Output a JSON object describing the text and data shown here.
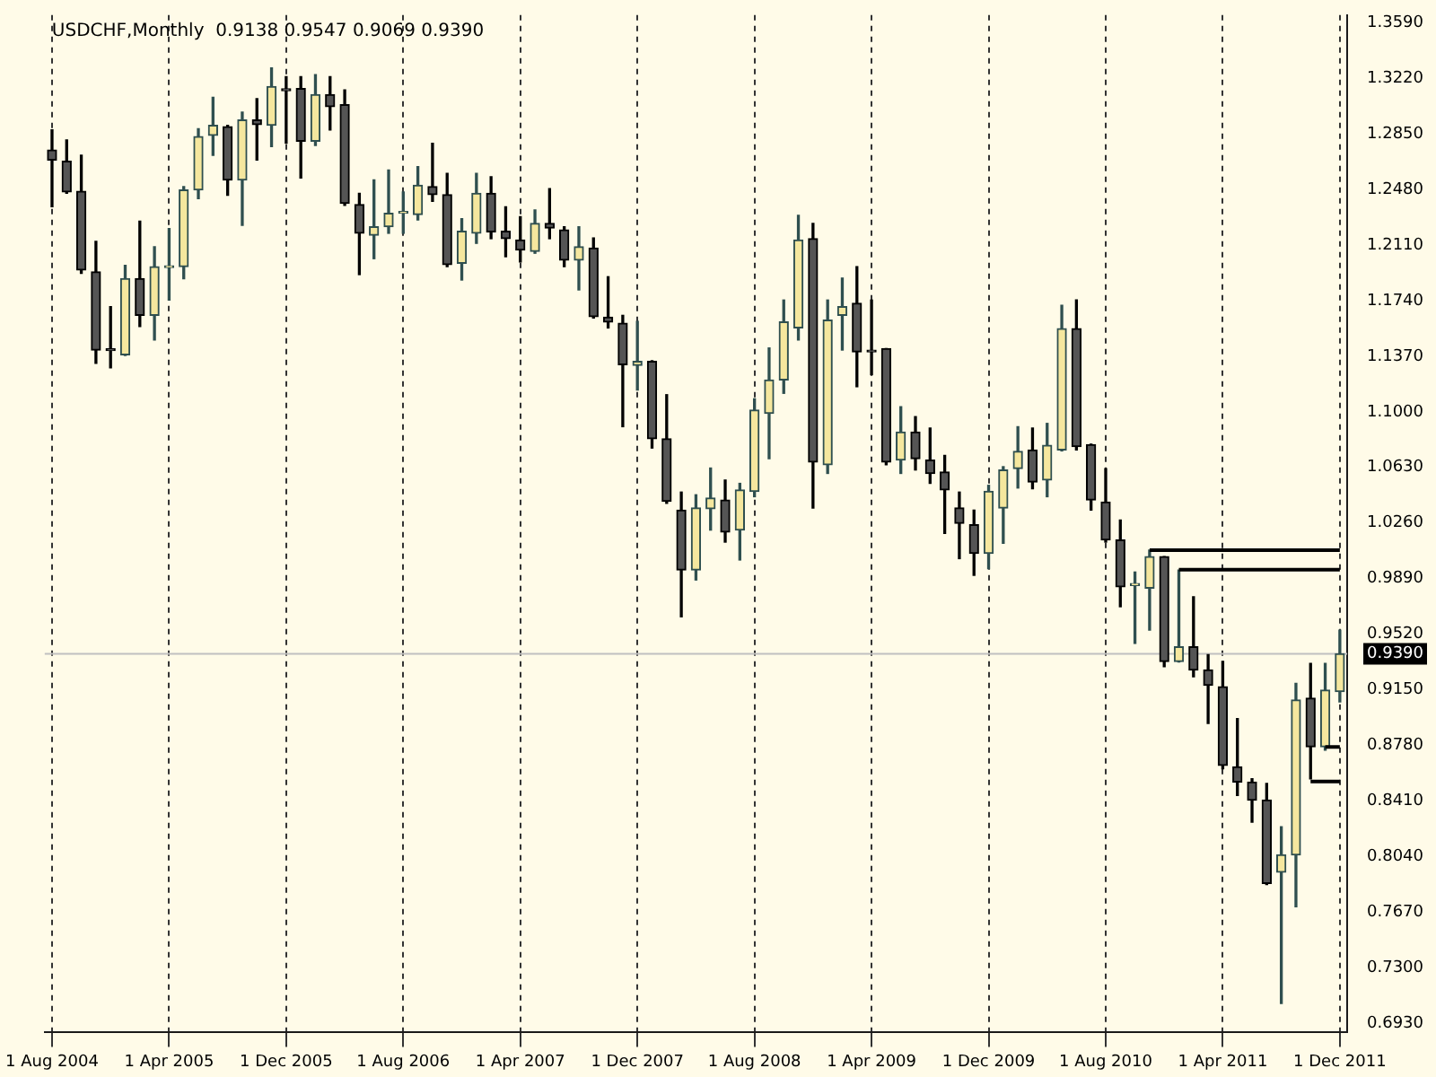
{
  "chart_data": {
    "type": "candlestick",
    "title": "USDCHF,Monthly  0.9138 0.9547 0.9069 0.9390",
    "categories": [
      "1 Aug 2004",
      null,
      null,
      null,
      null,
      null,
      null,
      null,
      "1 Apr 2005",
      null,
      null,
      null,
      null,
      null,
      null,
      null,
      "1 Dec 2005",
      null,
      null,
      null,
      null,
      null,
      null,
      null,
      "1 Aug 2006",
      null,
      null,
      null,
      null,
      null,
      null,
      null,
      "1 Apr 2007",
      null,
      null,
      null,
      null,
      null,
      null,
      null,
      "1 Dec 2007",
      null,
      null,
      null,
      null,
      null,
      null,
      null,
      "1 Aug 2008",
      null,
      null,
      null,
      null,
      null,
      null,
      null,
      "1 Apr 2009",
      null,
      null,
      null,
      null,
      null,
      null,
      null,
      "1 Dec 2009",
      null,
      null,
      null,
      null,
      null,
      null,
      null,
      "1 Aug 2010",
      null,
      null,
      null,
      null,
      null,
      null,
      null,
      "1 Apr 2011",
      null,
      null,
      null,
      null,
      null,
      null,
      null,
      "1 Dec 2011"
    ],
    "ohlc": [
      [
        1.2742,
        1.2876,
        1.2365,
        1.2676
      ],
      [
        1.2667,
        1.2809,
        1.2454,
        1.2463
      ],
      [
        1.2467,
        1.2707,
        1.1922,
        1.1944
      ],
      [
        1.1931,
        1.2135,
        1.1323,
        1.1411
      ],
      [
        1.1411,
        1.17,
        1.1292,
        1.1407
      ],
      [
        1.138,
        1.1975,
        1.1375,
        1.1886
      ],
      [
        1.1886,
        1.2268,
        1.1567,
        1.1642
      ],
      [
        1.1642,
        1.2099,
        1.1478,
        1.1966
      ],
      [
        1.196,
        1.2219,
        1.1744,
        1.1966
      ],
      [
        1.1966,
        1.2498,
        1.1886,
        1.2476
      ],
      [
        1.2476,
        1.2884,
        1.2419,
        1.2831
      ],
      [
        1.284,
        1.3093,
        1.2707,
        1.2907
      ],
      [
        1.2898,
        1.2907,
        1.2441,
        1.2543
      ],
      [
        1.2543,
        1.2995,
        1.2241,
        1.2942
      ],
      [
        1.2942,
        1.3084,
        1.2676,
        1.2911
      ],
      [
        1.2907,
        1.3288,
        1.2765,
        1.3164
      ],
      [
        1.3146,
        1.323,
        1.2787,
        1.3137
      ],
      [
        1.3151,
        1.323,
        1.2556,
        1.28
      ],
      [
        1.28,
        1.3244,
        1.2773,
        1.3111
      ],
      [
        1.3111,
        1.323,
        1.2876,
        1.3031
      ],
      [
        1.3044,
        1.3142,
        1.2374,
        1.2387
      ],
      [
        1.2379,
        1.2454,
        1.1913,
        1.2188
      ],
      [
        1.2175,
        1.2543,
        1.2019,
        1.2232
      ],
      [
        1.2232,
        1.2609,
        1.2188,
        1.2321
      ],
      [
        1.2321,
        1.2463,
        1.2188,
        1.2325
      ],
      [
        1.2312,
        1.2632,
        1.2277,
        1.2507
      ],
      [
        1.2498,
        1.2787,
        1.2401,
        1.2445
      ],
      [
        1.2445,
        1.2587,
        1.1966,
        1.1979
      ],
      [
        1.1988,
        1.2285,
        1.1877,
        1.2201
      ],
      [
        1.2188,
        1.2587,
        1.2121,
        1.2454
      ],
      [
        1.2454,
        1.2565,
        1.2152,
        1.2197
      ],
      [
        1.2201,
        1.2365,
        1.2032,
        1.2152
      ],
      [
        1.2143,
        1.2299,
        1.1997,
        1.2077
      ],
      [
        1.2068,
        1.2343,
        1.2055,
        1.2254
      ],
      [
        1.2254,
        1.2485,
        1.2152,
        1.2223
      ],
      [
        1.221,
        1.2232,
        1.1966,
        1.201
      ],
      [
        1.201,
        1.2232,
        1.1811,
        1.2099
      ],
      [
        1.209,
        1.2157,
        1.1624,
        1.1633
      ],
      [
        1.1629,
        1.1899,
        1.1558,
        1.1598
      ],
      [
        1.1589,
        1.1642,
        1.0901,
        1.1314
      ],
      [
        1.1309,
        1.1602,
        1.1145,
        1.1336
      ],
      [
        1.1336,
        1.134,
        1.0759,
        1.0821
      ],
      [
        1.0821,
        1.1114,
        1.0391,
        1.0404
      ],
      [
        1.0346,
        1.0466,
        0.9636,
        0.9947
      ],
      [
        0.9947,
        1.0448,
        0.9881,
        1.036
      ],
      [
        1.0355,
        1.0626,
        1.0213,
        1.0426
      ],
      [
        1.0413,
        1.0546,
        1.0133,
        1.02
      ],
      [
        1.0213,
        1.0524,
        1.0014,
        1.048
      ],
      [
        1.047,
        1.1087,
        1.0435,
        1.1012
      ],
      [
        1.099,
        1.1425,
        1.0688,
        1.1212
      ],
      [
        1.1212,
        1.1744,
        1.1123,
        1.1598
      ],
      [
        1.1558,
        1.2308,
        1.1478,
        1.2143
      ],
      [
        1.2152,
        1.2254,
        1.036,
        1.0666
      ],
      [
        1.0648,
        1.1744,
        1.059,
        1.1611
      ],
      [
        1.1642,
        1.189,
        1.1411,
        1.17
      ],
      [
        1.1722,
        1.1966,
        1.1167,
        1.1398
      ],
      [
        1.1402,
        1.1744,
        1.1247,
        1.1398
      ],
      [
        1.142,
        1.142,
        1.0648,
        1.0666
      ],
      [
        1.0679,
        1.1034,
        1.059,
        1.0866
      ],
      [
        1.0866,
        1.0968,
        1.0613,
        1.0688
      ],
      [
        1.0679,
        1.0892,
        1.0524,
        1.059
      ],
      [
        1.0599,
        1.071,
        1.0191,
        1.048
      ],
      [
        1.036,
        1.0466,
        1.0023,
        1.0258
      ],
      [
        1.0249,
        1.0346,
        0.9912,
        1.0058
      ],
      [
        1.0058,
        1.0511,
        0.9956,
        1.0471
      ],
      [
        1.036,
        1.0635,
        1.0125,
        1.0613
      ],
      [
        1.0622,
        1.0901,
        1.0493,
        1.0737
      ],
      [
        1.0746,
        1.0892,
        1.0488,
        1.0533
      ],
      [
        1.0546,
        1.0923,
        1.0435,
        1.0777
      ],
      [
        1.0746,
        1.1709,
        1.074,
        1.1553
      ],
      [
        1.1553,
        1.1744,
        1.0746,
        1.0768
      ],
      [
        1.0781,
        1.0785,
        1.0346,
        1.0413
      ],
      [
        1.04,
        1.0622,
        1.0133,
        1.0147
      ],
      [
        1.0147,
        1.028,
        0.9703,
        0.9836
      ],
      [
        0.9845,
        0.9934,
        0.9459,
        0.9854
      ],
      [
        0.9827,
        1.008,
        0.9548,
        1.0036
      ],
      [
        1.0036,
        1.0036,
        0.9304,
        0.9339
      ],
      [
        0.9339,
        0.9947,
        0.9335,
        0.9437
      ],
      [
        0.9437,
        0.977,
        0.9237,
        0.9282
      ],
      [
        0.9282,
        0.9384,
        0.8927,
        0.918
      ],
      [
        0.9171,
        0.9339,
        0.8625,
        0.8647
      ],
      [
        0.8638,
        0.8958,
        0.8447,
        0.8536
      ],
      [
        0.8536,
        0.8558,
        0.827,
        0.8416
      ],
      [
        0.8416,
        0.8527,
        0.7855,
        0.7862
      ],
      [
        0.7937,
        0.8239,
        0.7063,
        0.8052
      ],
      [
        0.8052,
        0.9193,
        0.7706,
        0.9082
      ],
      [
        0.9095,
        0.9326,
        0.8558,
        0.8771
      ],
      [
        0.8771,
        0.9326,
        0.8749,
        0.9148
      ],
      [
        0.9138,
        0.9547,
        0.9069,
        0.939
      ]
    ],
    "series": [
      {
        "type": "line",
        "color": "#000000",
        "values": [
          null,
          null,
          null,
          null,
          null,
          null,
          null,
          null,
          null,
          null,
          null,
          null,
          null,
          null,
          null,
          null,
          null,
          null,
          null,
          null,
          null,
          null,
          null,
          null,
          null,
          null,
          null,
          null,
          null,
          null,
          null,
          null,
          null,
          null,
          null,
          null,
          null,
          null,
          null,
          null,
          null,
          null,
          null,
          null,
          null,
          null,
          null,
          null,
          null,
          null,
          null,
          null,
          null,
          null,
          null,
          null,
          null,
          null,
          null,
          null,
          null,
          null,
          null,
          null,
          null,
          null,
          null,
          null,
          null,
          null,
          null,
          null,
          null,
          null,
          null,
          1.008,
          1.008,
          1.008,
          1.008,
          1.008,
          1.008,
          1.008,
          1.008,
          1.008,
          1.008,
          1.008,
          1.008,
          1.008,
          1.008
        ]
      },
      {
        "type": "line",
        "color": "#000000",
        "values": [
          null,
          null,
          null,
          null,
          null,
          null,
          null,
          null,
          null,
          null,
          null,
          null,
          null,
          null,
          null,
          null,
          null,
          null,
          null,
          null,
          null,
          null,
          null,
          null,
          null,
          null,
          null,
          null,
          null,
          null,
          null,
          null,
          null,
          null,
          null,
          null,
          null,
          null,
          null,
          null,
          null,
          null,
          null,
          null,
          null,
          null,
          null,
          null,
          null,
          null,
          null,
          null,
          null,
          null,
          null,
          null,
          null,
          null,
          null,
          null,
          null,
          null,
          null,
          null,
          null,
          null,
          null,
          null,
          null,
          null,
          null,
          null,
          null,
          null,
          null,
          null,
          null,
          0.995,
          0.995,
          0.995,
          0.995,
          0.995,
          0.995,
          0.995,
          0.995,
          0.995,
          0.995,
          0.995,
          0.995
        ]
      },
      {
        "type": "line",
        "color": "#000000",
        "values": [
          null,
          null,
          null,
          null,
          null,
          null,
          null,
          null,
          null,
          null,
          null,
          null,
          null,
          null,
          null,
          null,
          null,
          null,
          null,
          null,
          null,
          null,
          null,
          null,
          null,
          null,
          null,
          null,
          null,
          null,
          null,
          null,
          null,
          null,
          null,
          null,
          null,
          null,
          null,
          null,
          null,
          null,
          null,
          null,
          null,
          null,
          null,
          null,
          null,
          null,
          null,
          null,
          null,
          null,
          null,
          null,
          null,
          null,
          null,
          null,
          null,
          null,
          null,
          null,
          null,
          null,
          null,
          null,
          null,
          null,
          null,
          null,
          null,
          null,
          null,
          null,
          null,
          null,
          null,
          null,
          null,
          null,
          null,
          null,
          null,
          null,
          null,
          0.877,
          0.877
        ]
      },
      {
        "type": "line",
        "color": "#000000",
        "values": [
          null,
          null,
          null,
          null,
          null,
          null,
          null,
          null,
          null,
          null,
          null,
          null,
          null,
          null,
          null,
          null,
          null,
          null,
          null,
          null,
          null,
          null,
          null,
          null,
          null,
          null,
          null,
          null,
          null,
          null,
          null,
          null,
          null,
          null,
          null,
          null,
          null,
          null,
          null,
          null,
          null,
          null,
          null,
          null,
          null,
          null,
          null,
          null,
          null,
          null,
          null,
          null,
          null,
          null,
          null,
          null,
          null,
          null,
          null,
          null,
          null,
          null,
          null,
          null,
          null,
          null,
          null,
          null,
          null,
          null,
          null,
          null,
          null,
          null,
          null,
          null,
          null,
          null,
          null,
          null,
          null,
          null,
          null,
          null,
          null,
          null,
          0.854,
          0.854,
          0.854
        ]
      }
    ],
    "ylim": [
      0.687,
      1.364
    ],
    "yticks": [
      {
        "value": 0.693,
        "label": "0.6930"
      },
      {
        "value": 0.73,
        "label": "0.7300"
      },
      {
        "value": 0.767,
        "label": "0.7670"
      },
      {
        "value": 0.804,
        "label": "0.8040"
      },
      {
        "value": 0.841,
        "label": "0.8410"
      },
      {
        "value": 0.878,
        "label": "0.8780"
      },
      {
        "value": 0.915,
        "label": "0.9150"
      },
      {
        "value": 0.952,
        "label": "0.9520"
      },
      {
        "value": 0.989,
        "label": "0.9890"
      },
      {
        "value": 1.026,
        "label": "1.0260"
      },
      {
        "value": 1.063,
        "label": "1.0630"
      },
      {
        "value": 1.1,
        "label": "1.1000"
      },
      {
        "value": 1.137,
        "label": "1.1370"
      },
      {
        "value": 1.174,
        "label": "1.1740"
      },
      {
        "value": 1.211,
        "label": "1.2110"
      },
      {
        "value": 1.248,
        "label": "1.2480"
      },
      {
        "value": 1.285,
        "label": "1.2850"
      },
      {
        "value": 1.322,
        "label": "1.3220"
      },
      {
        "value": 1.359,
        "label": "1.3590"
      }
    ],
    "grid": "x",
    "ref_lines": [
      {
        "axis": "y",
        "value": 0.939,
        "label": "0.9390",
        "color": "#c0c0c0"
      }
    ]
  }
}
